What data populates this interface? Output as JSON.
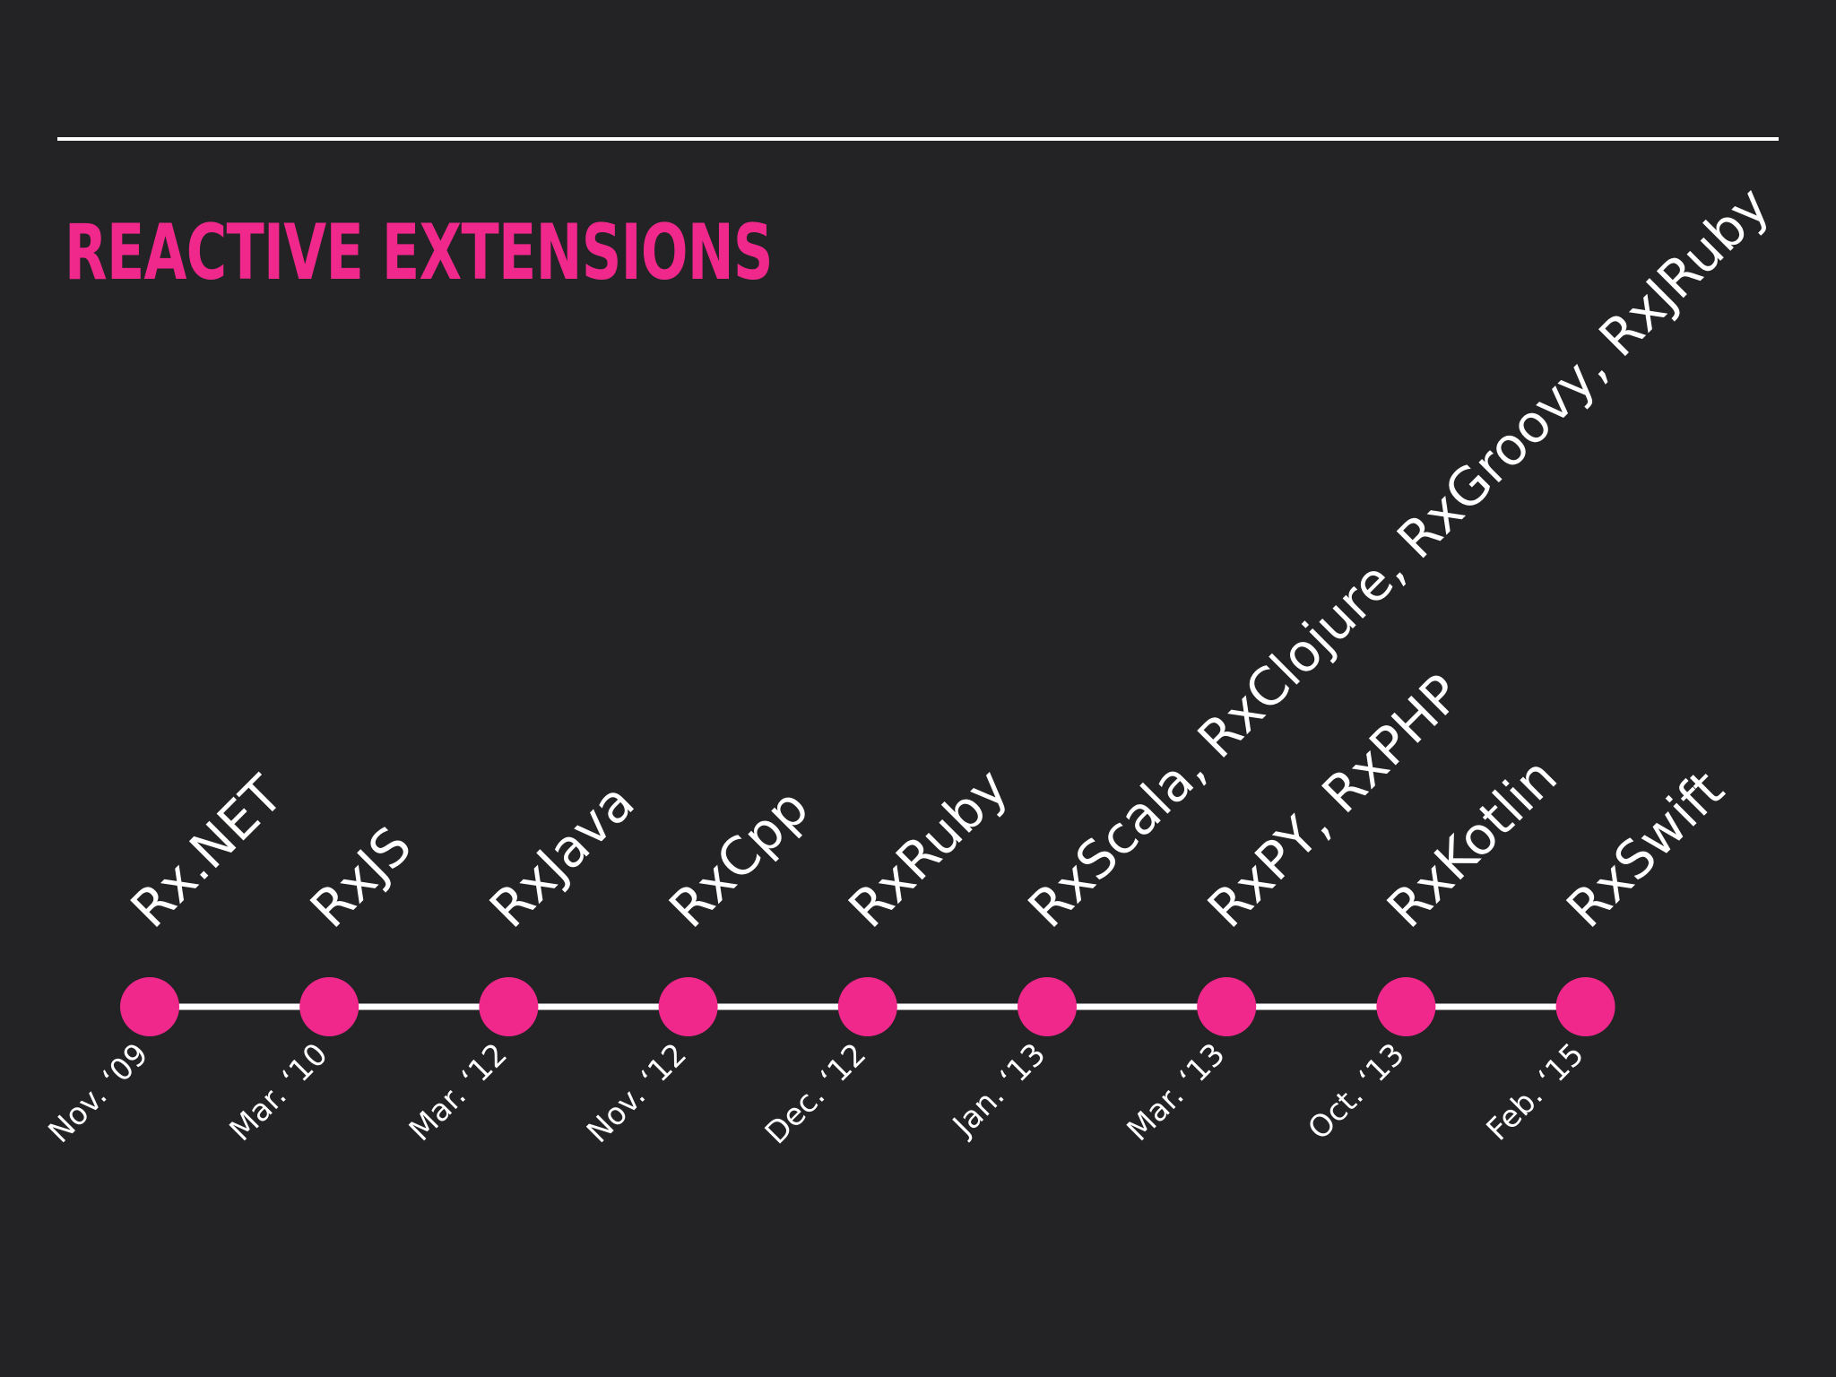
{
  "slide": {
    "title": "REACTIVE EXTENSIONS",
    "colors": {
      "background": "#232224",
      "accent": "#f0288c",
      "text": "#ffffff",
      "line": "#ffffff"
    }
  },
  "timeline": {
    "events": [
      {
        "date": "Nov. ‘09",
        "label": "Rx.NET"
      },
      {
        "date": "Mar. ‘10",
        "label": "RxJS"
      },
      {
        "date": "Mar. ‘12",
        "label": "RxJava"
      },
      {
        "date": "Nov. ‘12",
        "label": "RxCpp"
      },
      {
        "date": "Dec. ‘12",
        "label": "RxRuby"
      },
      {
        "date": "Jan. ‘13",
        "label": "RxScala, RxClojure, RxGroovy, RxJRuby"
      },
      {
        "date": "Mar. ‘13",
        "label": "RxPY, RxPHP"
      },
      {
        "date": "Oct. ‘13",
        "label": "RxKotlin"
      },
      {
        "date": "Feb. ‘15",
        "label": "RxSwift"
      }
    ]
  }
}
